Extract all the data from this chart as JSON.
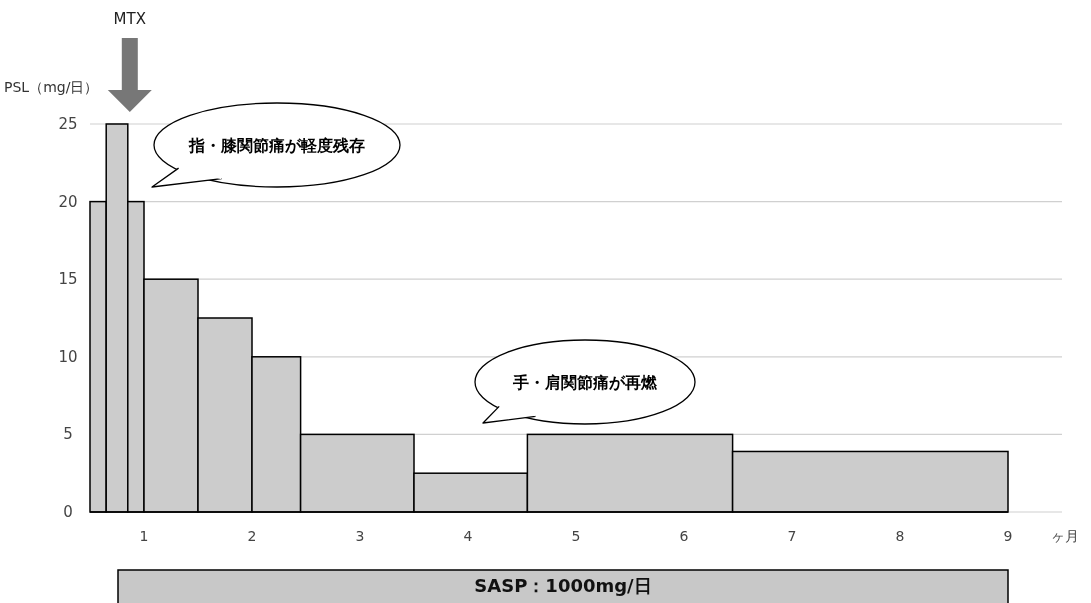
{
  "chart_data": {
    "type": "histogram",
    "bins": [
      0.5,
      0.65,
      0.85,
      1.0,
      1.5,
      2.0,
      2.45,
      3.5,
      4.55,
      6.45,
      9.0
    ],
    "values": [
      20,
      25,
      20,
      15,
      12.5,
      10,
      5,
      2.5,
      5,
      3.9
    ],
    "color": "#cccccc",
    "xlim": [
      0.5,
      9.5
    ],
    "xticks": [
      1,
      2,
      3,
      4,
      5,
      6,
      7,
      8,
      9
    ],
    "ylim": [
      0,
      25
    ],
    "yticks": [
      0,
      5,
      10,
      15,
      20,
      25
    ],
    "xlabel": "ヶ月",
    "ylabel": "PSL（mg/日）",
    "grid": "y",
    "annotations": [
      "MTX",
      "指・膝関節痛が軽度残存",
      "手・肩関節痛が再燃",
      "SASP：1000mg/日"
    ]
  }
}
